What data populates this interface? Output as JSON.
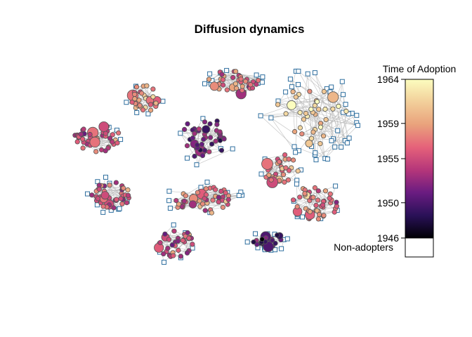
{
  "chart_data": {
    "type": "network",
    "title": "Diffusion dynamics",
    "legend": {
      "title": "Time of Adoption",
      "ticks": [
        1964,
        1959,
        1955,
        1950,
        1946
      ],
      "range": [
        1946,
        1964
      ],
      "non_adopters_label": "Non-adopters",
      "palette": [
        "#000004",
        "#2a1158",
        "#6a1c81",
        "#b5367a",
        "#e5617a",
        "#e9a27c",
        "#f2cf9a",
        "#fcfdbf"
      ]
    },
    "node_shapes": {
      "adopter": "circle",
      "non_adopter": "square"
    },
    "colors": {
      "non_adopter_fill": "#ffffff",
      "non_adopter_stroke": "#2f6f9f",
      "node_stroke": "#555555",
      "edge": "#bbbbbb"
    },
    "clusters": [
      {
        "count": 50,
        "non_adopters": 3,
        "main_year": 1955
      },
      {
        "count": 34,
        "non_adopters": 5,
        "main_year": 1958
      },
      {
        "count": 38,
        "non_adopters": 12,
        "main_year": 1957
      },
      {
        "count": 36,
        "non_adopters": 40,
        "main_year": 1962
      },
      {
        "count": 46,
        "non_adopters": 6,
        "main_year": 1951
      },
      {
        "count": 34,
        "non_adopters": 4,
        "main_year": 1958
      },
      {
        "count": 44,
        "non_adopters": 10,
        "main_year": 1956
      },
      {
        "count": 48,
        "non_adopters": 10,
        "main_year": 1956
      },
      {
        "count": 44,
        "non_adopters": 8,
        "main_year": 1957
      },
      {
        "count": 36,
        "non_adopters": 6,
        "main_year": 1954
      },
      {
        "count": 22,
        "non_adopters": 14,
        "main_year": 1949
      }
    ]
  }
}
